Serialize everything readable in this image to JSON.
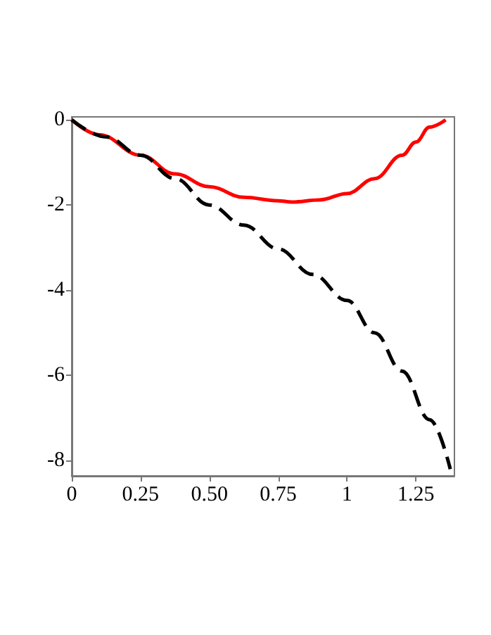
{
  "chart_data": {
    "type": "line",
    "xlim": [
      0,
      1.39
    ],
    "ylim": [
      -8.36,
      0.07
    ],
    "xticks": [
      0,
      0.25,
      {
        "value": 0.5,
        "label": "0.50"
      },
      0.75,
      1,
      1.25
    ],
    "yticks": [
      -8,
      -6,
      -4,
      -2,
      0
    ],
    "marker": "none",
    "series": [
      {
        "color": "#ff0000",
        "line_style": "solid",
        "x": [
          0,
          0.1,
          0.25,
          0.375,
          0.5,
          0.625,
          0.75,
          0.8,
          0.9,
          1.0,
          1.1,
          1.2,
          1.25,
          1.3,
          1.358
        ],
        "values": [
          0,
          -0.35,
          -0.83,
          -1.27,
          -1.57,
          -1.82,
          -1.9,
          -1.93,
          -1.88,
          -1.73,
          -1.38,
          -0.83,
          -0.52,
          -0.17,
          0
        ]
      },
      {
        "color": "#000000",
        "line_style": "dashed",
        "x": [
          0,
          0.125,
          0.25,
          0.375,
          0.5,
          0.625,
          0.75,
          0.875,
          1.0,
          1.1,
          1.2,
          1.3,
          1.375
        ],
        "values": [
          0,
          -0.4,
          -0.83,
          -1.38,
          -2.0,
          -2.47,
          -3.03,
          -3.63,
          -4.24,
          -5.0,
          -5.9,
          -7.04,
          -8.2
        ]
      }
    ]
  }
}
